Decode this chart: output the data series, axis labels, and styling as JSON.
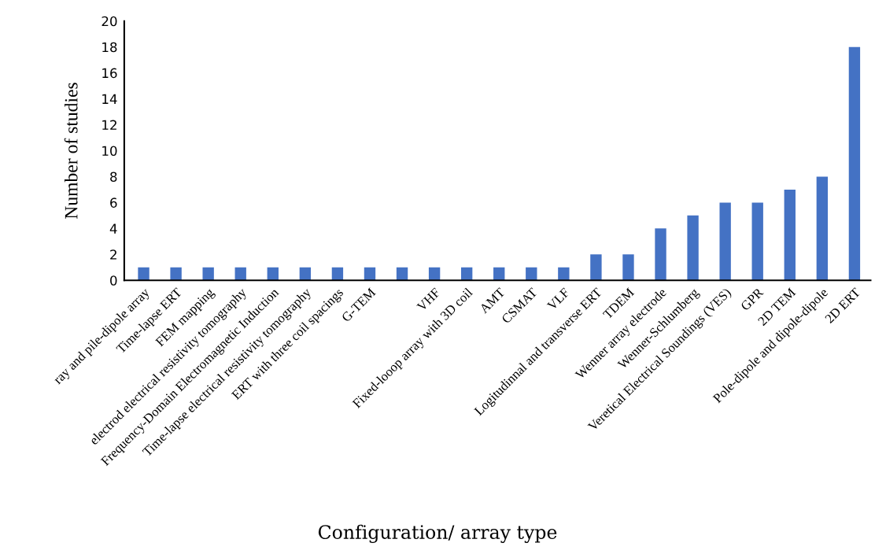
{
  "chart_data": {
    "type": "bar",
    "xlabel": "Configuration/ array type",
    "ylabel": "Number of studies",
    "categories": [
      "ray and pile-dipole array",
      "Time-lapse ERT",
      "FEM mapping",
      "electrod electrical resistivity tomography",
      "Frequency-Domain Electromagnetic Induction",
      "Time-lapse electrical resistivity tomography",
      "ERT with three coil spacings",
      "G-TEM",
      null,
      "VHF",
      "Fixed-looop array with 3D coil",
      "AMT",
      "CSMAT",
      "VLF",
      "Logitudinnal and transverse ERT",
      "TDEM",
      "Wenner array electrode",
      "Wenner-Schlumberg",
      "Veretical Electrical Soundings (VES)",
      "GPR",
      "2D TEM",
      "Pole-dipole and dipole-dipole",
      "2D ERT"
    ],
    "values": [
      1,
      1,
      1,
      1,
      1,
      1,
      1,
      1,
      1,
      1,
      1,
      1,
      1,
      1,
      2,
      2,
      4,
      5,
      6,
      6,
      7,
      8,
      18
    ],
    "color": "#4472c4",
    "ylim": [
      0,
      20
    ],
    "yticks": [
      0,
      2,
      4,
      6,
      8,
      10,
      12,
      14,
      16,
      18,
      20
    ],
    "grid": false,
    "legend": false
  }
}
